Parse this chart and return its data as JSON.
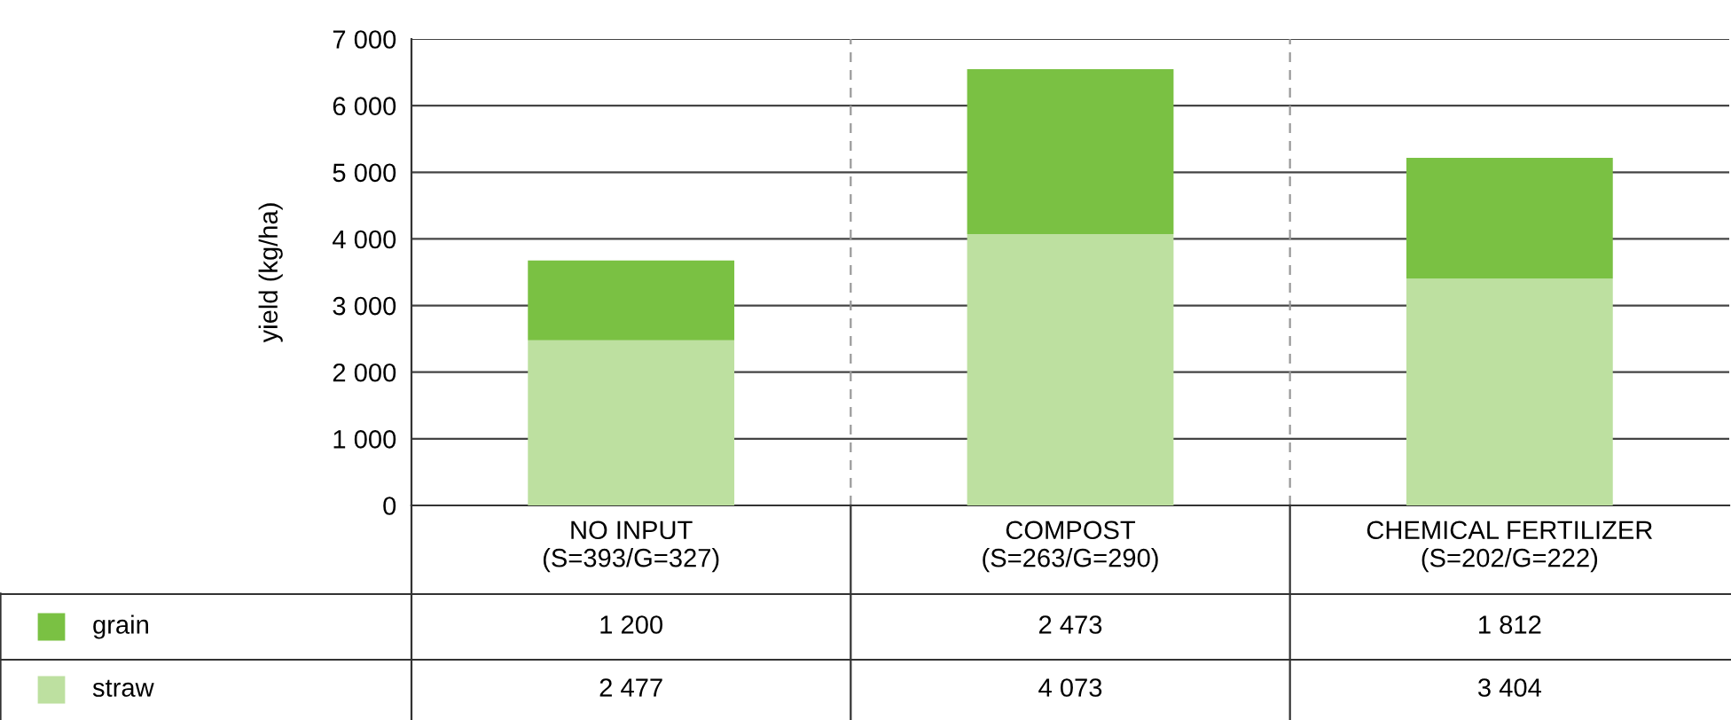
{
  "chart_data": {
    "type": "bar",
    "stacked": true,
    "ylabel": "yield (kg/ha)",
    "categories": [
      "NO INPUT\n(S=393/G=327)",
      "COMPOST\n(S=263/G=290)",
      "CHEMICAL FERTILIZER\n(S=202/G=222)"
    ],
    "series": [
      {
        "name": "straw",
        "color": "#bde0a0",
        "values": [
          2477,
          4073,
          3404
        ],
        "value_labels": [
          "2 477",
          "4 073",
          "3 404"
        ]
      },
      {
        "name": "grain",
        "color": "#7ac143",
        "values": [
          1200,
          2473,
          1812
        ],
        "value_labels": [
          "1 200",
          "2 473",
          "1 812"
        ]
      }
    ],
    "ylim": [
      0,
      7000
    ],
    "yticks": [
      {
        "value": 0,
        "label": "0"
      },
      {
        "value": 1000,
        "label": "1 000"
      },
      {
        "value": 2000,
        "label": "2 000"
      },
      {
        "value": 3000,
        "label": "3 000"
      },
      {
        "value": 4000,
        "label": "4 000"
      },
      {
        "value": 5000,
        "label": "5 000"
      },
      {
        "value": 6000,
        "label": "6 000"
      },
      {
        "value": 7000,
        "label": "7 000"
      }
    ],
    "grid": "y",
    "legend": "bottom left"
  }
}
